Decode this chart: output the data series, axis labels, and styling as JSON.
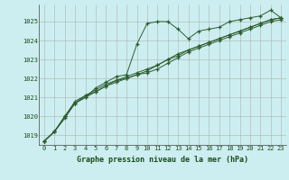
{
  "title": "Graphe pression niveau de la mer (hPa)",
  "bg_color": "#cceef0",
  "grid_color": "#b0b0b0",
  "line_color": "#2d5c2d",
  "text_color": "#1a4a1a",
  "xlim": [
    -0.5,
    23.5
  ],
  "ylim": [
    1018.5,
    1025.9
  ],
  "yticks": [
    1019,
    1020,
    1021,
    1022,
    1023,
    1024,
    1025
  ],
  "xticks": [
    0,
    1,
    2,
    3,
    4,
    5,
    6,
    7,
    8,
    9,
    10,
    11,
    12,
    13,
    14,
    15,
    16,
    17,
    18,
    19,
    20,
    21,
    22,
    23
  ],
  "series": [
    [
      1018.7,
      1019.2,
      1019.9,
      1020.7,
      1021.0,
      1021.5,
      1021.8,
      1022.1,
      1022.2,
      1023.8,
      1024.9,
      1025.0,
      1025.0,
      1024.6,
      1024.1,
      1024.5,
      1024.6,
      1024.7,
      1025.0,
      1025.1,
      1025.2,
      1025.3,
      1025.6,
      1025.2
    ],
    [
      1018.7,
      1019.2,
      1020.0,
      1020.8,
      1021.1,
      1021.3,
      1021.6,
      1021.9,
      1022.0,
      1022.2,
      1022.3,
      1022.5,
      1022.8,
      1023.1,
      1023.4,
      1023.6,
      1023.8,
      1024.0,
      1024.2,
      1024.4,
      1024.6,
      1024.8,
      1025.0,
      1025.1
    ],
    [
      1018.7,
      1019.2,
      1020.0,
      1020.7,
      1021.0,
      1021.3,
      1021.6,
      1021.8,
      1022.0,
      1022.2,
      1022.4,
      1022.7,
      1023.0,
      1023.3,
      1023.5,
      1023.7,
      1023.9,
      1024.1,
      1024.3,
      1024.5,
      1024.7,
      1024.9,
      1025.1,
      1025.2
    ],
    [
      1018.7,
      1019.2,
      1020.0,
      1020.7,
      1021.1,
      1021.4,
      1021.7,
      1021.9,
      1022.1,
      1022.3,
      1022.5,
      1022.7,
      1023.0,
      1023.2,
      1023.5,
      1023.7,
      1023.9,
      1024.1,
      1024.3,
      1024.5,
      1024.7,
      1024.9,
      1025.1,
      1025.2
    ]
  ]
}
